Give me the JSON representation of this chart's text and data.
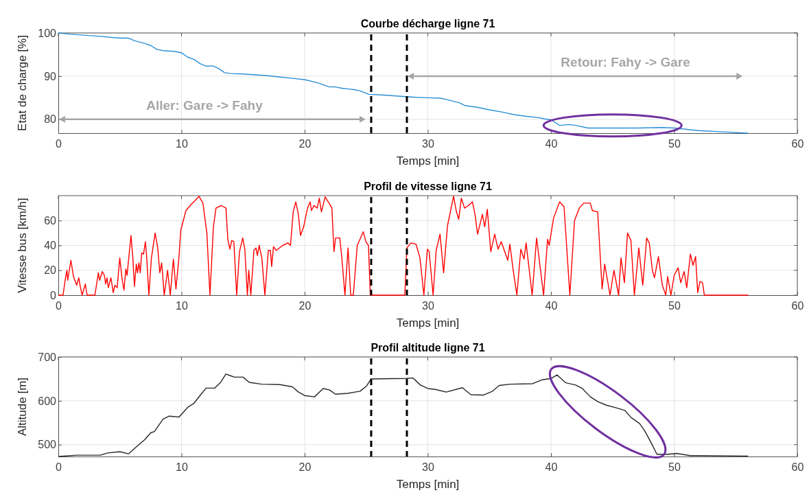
{
  "chart_data": [
    {
      "type": "line",
      "title": "Courbe décharge ligne 71",
      "xlabel": "Temps [min]",
      "ylabel": "Etat de charge [%]",
      "x": [
        0,
        1,
        3,
        5,
        5.7,
        6.2,
        7,
        7.5,
        8,
        8.5,
        9.5,
        10,
        10.5,
        11,
        11.5,
        12,
        12.5,
        13,
        13.5,
        14,
        15,
        16,
        17,
        18,
        19,
        20,
        21,
        22,
        22.5,
        23,
        24,
        24.5,
        25.2,
        26,
        27,
        28,
        29,
        30,
        31,
        31.5,
        32.5,
        33,
        34,
        35,
        36,
        37,
        38,
        39,
        39.5,
        40,
        40.7,
        41.5,
        42,
        43,
        45,
        47,
        49,
        50,
        52,
        54,
        56
      ],
      "values": [
        100,
        99.7,
        99.3,
        98.8,
        98.8,
        98.2,
        97.6,
        97.1,
        96.2,
        95.9,
        95.7,
        95.4,
        94.4,
        93.9,
        92.9,
        92.3,
        92.4,
        91.8,
        90.8,
        90.6,
        90.5,
        90.3,
        90.1,
        89.8,
        89.5,
        89.2,
        88.5,
        87.5,
        87.5,
        87.2,
        86.9,
        86.6,
        85.8,
        85.7,
        85.5,
        85.3,
        85.1,
        85.0,
        84.9,
        84.6,
        83.9,
        83.2,
        82.8,
        82.2,
        81.7,
        81.1,
        80.7,
        80.4,
        80.1,
        79.9,
        78.6,
        78.8,
        78.6,
        78.0,
        78.0,
        78.0,
        78.1,
        78.0,
        77.4,
        77.1,
        76.8
      ],
      "color": "#2b8fd6",
      "xlim": [
        0,
        60
      ],
      "xticks": [
        0,
        10,
        20,
        30,
        40,
        50,
        60
      ],
      "ylim": [
        76.8,
        100
      ],
      "yticks": [
        80,
        90,
        100
      ],
      "grid": true,
      "ref_lines": [
        {
          "axis": "x",
          "value": 25.4,
          "color": "#000000",
          "line_style": "dashed"
        },
        {
          "axis": "x",
          "value": 28.3,
          "color": "#000000",
          "line_style": "dashed"
        }
      ],
      "annotations": [
        "Aller: Gare -> Fahy",
        "Retour: Fahy -> Gare"
      ]
    },
    {
      "type": "line",
      "title": "Profil de vitesse ligne 71",
      "xlabel": "Temps [min]",
      "ylabel": "Vitesse bus [km/h]",
      "x": [
        0,
        0.38,
        0.6,
        0.7,
        0.76,
        1.02,
        1.23,
        1.49,
        1.66,
        1.78,
        1.93,
        2.19,
        2.34,
        2.97,
        3.25,
        3.35,
        3.57,
        3.74,
        3.84,
        3.95,
        4.06,
        4.27,
        4.46,
        4.59,
        4.78,
        4.99,
        5.16,
        5.33,
        5.48,
        5.58,
        5.9,
        6.05,
        6.18,
        6.33,
        6.43,
        6.54,
        6.65,
        6.77,
        6.92,
        7.07,
        7.18,
        7.35,
        7.56,
        7.86,
        8.07,
        8.24,
        8.39,
        8.6,
        8.87,
        9.09,
        9.34,
        9.55,
        9.79,
        9.94,
        10.36,
        10.79,
        11.1,
        11.42,
        11.74,
        12.06,
        12.31,
        12.59,
        12.8,
        13.23,
        13.61,
        13.76,
        13.93,
        14.08,
        14.25,
        14.48,
        14.71,
        14.97,
        15.14,
        15.35,
        15.46,
        15.63,
        15.88,
        16.05,
        16.16,
        16.31,
        16.52,
        16.77,
        17.05,
        17.22,
        17.32,
        17.47,
        17.69,
        18.22,
        18.64,
        18.85,
        19.07,
        19.28,
        19.49,
        19.66,
        19.92,
        20.23,
        20.45,
        20.55,
        20.76,
        21.02,
        21.19,
        21.36,
        21.66,
        22.04,
        22.21,
        22.38,
        22.51,
        22.85,
        23.0,
        23.27,
        23.52,
        23.74,
        23.95,
        24.27,
        24.76,
        24.97,
        25.18,
        25.33,
        28.13,
        28.3,
        28.62,
        29.04,
        29.36,
        29.68,
        29.96,
        30.11,
        30.43,
        30.68,
        30.99,
        31.28,
        31.6,
        32.09,
        32.3,
        32.51,
        32.72,
        32.98,
        33.3,
        33.62,
        33.83,
        34.04,
        34.43,
        34.62,
        34.83,
        35.11,
        35.43,
        35.7,
        35.96,
        36.49,
        36.66,
        36.96,
        37.23,
        37.55,
        37.81,
        37.98,
        38.47,
        38.83,
        39.4,
        39.72,
        39.85,
        40.21,
        40.7,
        41.06,
        41.53,
        41.91,
        42.3,
        42.66,
        43.19,
        43.36,
        43.79,
        44.15,
        44.36,
        44.79,
        45.11,
        45.49,
        45.68,
        45.96,
        46.21,
        46.49,
        46.77,
        47.13,
        47.45,
        47.77,
        47.98,
        48.23,
        48.4,
        48.72,
        49.04,
        49.32,
        49.47,
        49.74,
        50.0,
        50.32,
        50.53,
        50.81,
        51.02,
        51.32,
        51.53,
        51.74,
        51.91,
        52.09,
        52.3,
        52.45,
        56.02
      ],
      "values": [
        0,
        0,
        15,
        20,
        12,
        28,
        15,
        8,
        14,
        7,
        0,
        9,
        0,
        0,
        18,
        12,
        19,
        16,
        9,
        14,
        6,
        14,
        2,
        8,
        6,
        30,
        14,
        4,
        21,
        16,
        48,
        30,
        7,
        25,
        18,
        26,
        18,
        34,
        33,
        43,
        30,
        0,
        30,
        50,
        38,
        18,
        26,
        0,
        20,
        0,
        29,
        5,
        30,
        52,
        68,
        73,
        76,
        79.5,
        74,
        50,
        0,
        55,
        70,
        72,
        70,
        45,
        37,
        44,
        43,
        0,
        35,
        46,
        37,
        0,
        20,
        0,
        36,
        38,
        32,
        40,
        30,
        0,
        36,
        36,
        23,
        39,
        36,
        40,
        42,
        40,
        67,
        75,
        65,
        48,
        55,
        70,
        75,
        68,
        72,
        70,
        78,
        67,
        79,
        73,
        70,
        35,
        46,
        46,
        32,
        0,
        38,
        0,
        0,
        40,
        51,
        43,
        40,
        0,
        0,
        38,
        42,
        41,
        30,
        0,
        37,
        35,
        0,
        36,
        49,
        18,
        56,
        79.5,
        68,
        61,
        78,
        70,
        72,
        75,
        65,
        49,
        65,
        55,
        69,
        35,
        49,
        37,
        43,
        28,
        41,
        18,
        0,
        37,
        29,
        42,
        0,
        46,
        0,
        45,
        40,
        62,
        75,
        71,
        0,
        60,
        70,
        74,
        74,
        68,
        67,
        5,
        25,
        0,
        20,
        0,
        30,
        10,
        50,
        44,
        0,
        38,
        8,
        46,
        42,
        20,
        14,
        31,
        8,
        0,
        15,
        0,
        16,
        22,
        10,
        19,
        6,
        33,
        24,
        31,
        2,
        11,
        10,
        0,
        0
      ],
      "color": "#ff0000",
      "xlim": [
        0,
        60
      ],
      "xticks": [
        0,
        10,
        20,
        30,
        40,
        50,
        60
      ],
      "ylim": [
        0,
        80
      ],
      "yticks": [
        0,
        20,
        40,
        60
      ],
      "grid": true,
      "ref_lines": [
        {
          "axis": "x",
          "value": 25.4,
          "color": "#000000",
          "line_style": "dashed"
        },
        {
          "axis": "x",
          "value": 28.3,
          "color": "#000000",
          "line_style": "dashed"
        }
      ]
    },
    {
      "type": "line",
      "title": "Profil altitude ligne 71",
      "xlabel": "Temps [min]",
      "ylabel": "Altitude [m]",
      "x": [
        0,
        1.5,
        3.4,
        4,
        5,
        5.7,
        6.3,
        7,
        7.5,
        7.8,
        8.5,
        9,
        9.8,
        10.5,
        11,
        11.5,
        12,
        12.7,
        13.2,
        13.6,
        14,
        14.3,
        15,
        15.5,
        16.5,
        18,
        19,
        19.5,
        20,
        20.8,
        21.5,
        22,
        22.5,
        23.5,
        24.5,
        25,
        25.4,
        28.3,
        28.8,
        29.4,
        30,
        30.6,
        31.5,
        32.8,
        33.5,
        34.5,
        35.2,
        35.8,
        36.7,
        38.5,
        39.3,
        40,
        40.5,
        41.2,
        42,
        42.5,
        43.2,
        43.8,
        44.5,
        45.3,
        46,
        46.5,
        47.2,
        47.6,
        48.1,
        48.6,
        49.5,
        50.2,
        51.3,
        56
      ],
      "values": [
        473,
        476,
        476,
        481,
        484,
        479,
        494,
        511,
        527,
        530,
        558,
        565,
        563,
        585,
        594,
        612,
        629,
        629,
        643,
        661,
        657,
        654,
        654,
        642,
        638,
        637,
        632,
        620,
        612,
        609,
        628,
        625,
        615,
        617,
        622,
        633,
        650,
        651,
        652,
        636,
        628,
        626,
        620,
        630,
        614,
        613,
        621,
        635,
        638,
        639,
        648,
        651,
        659,
        641,
        636,
        629,
        609,
        598,
        590,
        584,
        578,
        562,
        548,
        532,
        506,
        478,
        478,
        480,
        475,
        474
      ],
      "color": "#262626",
      "xlim": [
        0,
        60
      ],
      "xticks": [
        0,
        10,
        20,
        30,
        40,
        50,
        60
      ],
      "ylim": [
        473,
        700
      ],
      "yticks": [
        500,
        600,
        700
      ],
      "grid": true,
      "ref_lines": [
        {
          "axis": "x",
          "value": 25.4,
          "color": "#000000",
          "line_style": "dashed"
        },
        {
          "axis": "x",
          "value": 28.3,
          "color": "#000000",
          "line_style": "dashed"
        }
      ]
    }
  ]
}
